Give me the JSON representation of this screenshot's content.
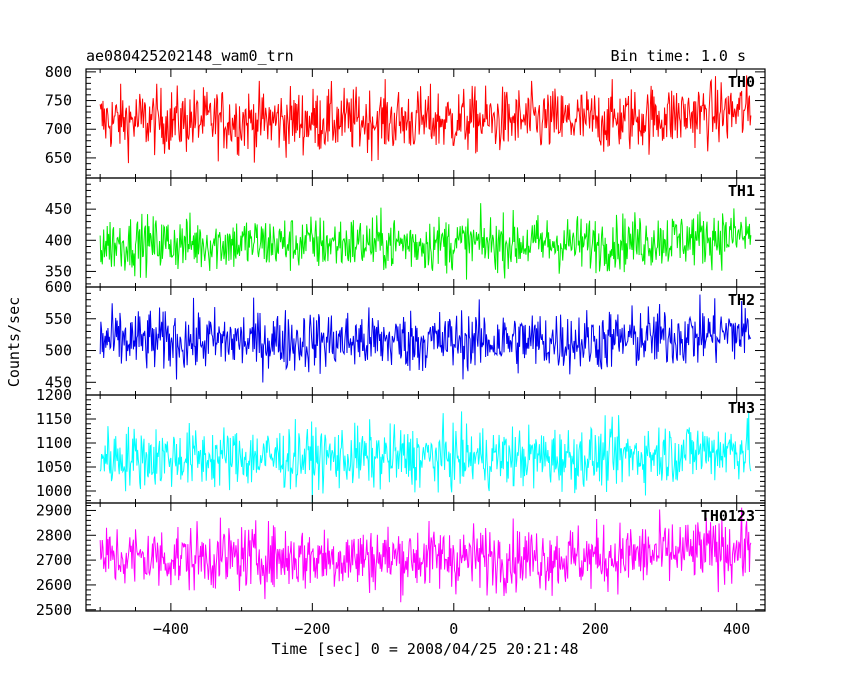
{
  "header": {
    "title": "ae080425202148_wam0_trn",
    "bin_time": "Bin time: 1.0 s"
  },
  "chart_data": {
    "type": "line",
    "xlabel": "Time [sec] 0 = 2008/04/25 20:21:48",
    "ylabel": "Counts/sec",
    "xlim": [
      -520,
      440
    ],
    "x_range": [
      -500,
      420
    ],
    "x_ticks": [
      -400,
      -200,
      0,
      200,
      400
    ],
    "x_tick_labels": [
      "−400",
      "−200",
      "0",
      "200",
      "400"
    ],
    "grid": false,
    "panels": [
      {
        "name": "TH0",
        "color": "#ff0000",
        "ylim": [
          615,
          805
        ],
        "yticks": [
          650,
          700,
          750,
          800
        ],
        "mean": 715,
        "sigma": 28
      },
      {
        "name": "TH1",
        "color": "#00ee00",
        "ylim": [
          325,
          500
        ],
        "yticks": [
          350,
          400,
          450
        ],
        "mean": 395,
        "sigma": 22
      },
      {
        "name": "TH2",
        "color": "#0000ee",
        "ylim": [
          430,
          600
        ],
        "yticks": [
          450,
          500,
          550,
          600
        ],
        "mean": 515,
        "sigma": 24
      },
      {
        "name": "TH3",
        "color": "#00ffff",
        "ylim": [
          975,
          1200
        ],
        "yticks": [
          1000,
          1050,
          1100,
          1150,
          1200
        ],
        "mean": 1070,
        "sigma": 32
      },
      {
        "name": "TH0123",
        "color": "#ff00ff",
        "ylim": [
          2495,
          2930
        ],
        "yticks": [
          2500,
          2600,
          2700,
          2800,
          2900
        ],
        "mean": 2710,
        "sigma": 65
      }
    ]
  }
}
